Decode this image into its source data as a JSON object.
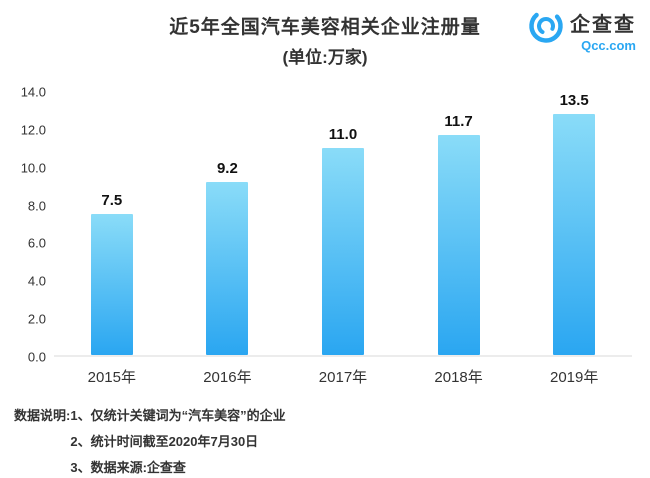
{
  "header": {
    "title_line1": "近5年全国汽车美容相关企业注册量",
    "title_line2": "(单位:万家)",
    "logo_name": "企查查",
    "logo_sub": "Qcc.com"
  },
  "chart_data": {
    "type": "bar",
    "title": "近5年全国汽车美容相关企业注册量(单位:万家)",
    "categories": [
      "2015年",
      "2016年",
      "2017年",
      "2018年",
      "2019年"
    ],
    "values": [
      7.5,
      9.2,
      11.0,
      11.7,
      13.5
    ],
    "value_labels": [
      "7.5",
      "9.2",
      "11.0",
      "11.7",
      "13.5"
    ],
    "xlabel": "",
    "ylabel": "",
    "ylim": [
      0,
      14
    ],
    "yticks": [
      0,
      2,
      4,
      6,
      8,
      10,
      12,
      14
    ],
    "ytick_labels": [
      "0.0",
      "2.0",
      "4.0",
      "6.0",
      "8.0",
      "10.0",
      "12.0",
      "14.0"
    ],
    "grid": false,
    "legend": "none",
    "bar_color_top": "#8adcf8",
    "bar_color_bottom": "#2aa6f1",
    "accent_color": "#2aa7f2"
  },
  "footer": {
    "label": "数据说明:",
    "notes": [
      "1、仅统计关键词为“汽车美容”的企业",
      "2、统计时间截至2020年7月30日",
      "3、数据来源:企查查"
    ]
  }
}
